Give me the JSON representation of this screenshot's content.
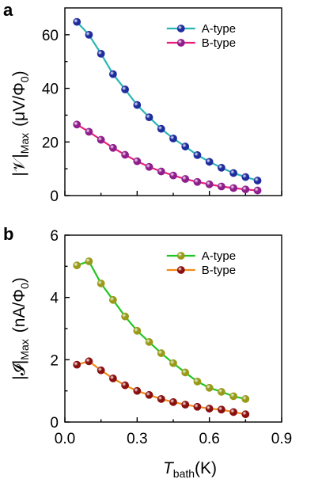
{
  "chart_data": [
    {
      "type": "line",
      "panel_label": "a",
      "ylabel_main": "|𝒱|",
      "ylabel_sub": "Max",
      "ylabel_unit": "(μV/Φ",
      "ylabel_unit_sub": "0",
      "ylabel_unit_end": ")",
      "xlim": [
        0,
        0.9
      ],
      "ylim": [
        0,
        70
      ],
      "yticks": [
        "0",
        "20",
        "40",
        "60"
      ],
      "ytick_values": [
        0,
        20,
        40,
        60
      ],
      "xtick_values": [
        0,
        0.3,
        0.6,
        0.9
      ],
      "legend_position": "top-right",
      "series": [
        {
          "name": "A-type",
          "line_color": "#2ab5b5",
          "marker_color": "#1f2c9e",
          "x": [
            0.05,
            0.1,
            0.15,
            0.2,
            0.25,
            0.3,
            0.35,
            0.4,
            0.45,
            0.5,
            0.55,
            0.6,
            0.65,
            0.7,
            0.75,
            0.8
          ],
          "y": [
            64.8,
            60.0,
            52.9,
            45.3,
            39.6,
            33.8,
            29.2,
            24.9,
            21.3,
            18.3,
            15.1,
            12.6,
            10.4,
            8.4,
            6.9,
            5.6
          ]
        },
        {
          "name": "B-type",
          "line_color": "#e8207e",
          "marker_color": "#8e1e8c",
          "x": [
            0.05,
            0.1,
            0.15,
            0.2,
            0.25,
            0.3,
            0.35,
            0.4,
            0.45,
            0.5,
            0.55,
            0.6,
            0.65,
            0.7,
            0.75,
            0.8
          ],
          "y": [
            26.5,
            23.8,
            20.8,
            17.8,
            15.2,
            12.8,
            10.7,
            9.0,
            7.5,
            6.2,
            5.1,
            4.2,
            3.4,
            2.8,
            2.3,
            1.9
          ]
        }
      ]
    },
    {
      "type": "line",
      "panel_label": "b",
      "ylabel_main": "|𝓘|",
      "ylabel_sub": "Max",
      "ylabel_unit": "(nA/Φ",
      "ylabel_unit_sub": "0",
      "ylabel_unit_end": ")",
      "xlabel_main": "T",
      "xlabel_sub": "bath",
      "xlabel_unit": "(K)",
      "xlim": [
        0,
        0.9
      ],
      "ylim": [
        0,
        6
      ],
      "yticks": [
        "0",
        "2",
        "4",
        "6"
      ],
      "ytick_values": [
        0,
        2,
        4,
        6
      ],
      "xticks": [
        "0.0",
        "0.3",
        "0.6",
        "0.9"
      ],
      "xtick_values": [
        0,
        0.3,
        0.6,
        0.9
      ],
      "legend_position": "top-right",
      "series": [
        {
          "name": "A-type",
          "line_color": "#22c522",
          "marker_color": "#9a9a1a",
          "x": [
            0.05,
            0.1,
            0.15,
            0.2,
            0.25,
            0.3,
            0.35,
            0.4,
            0.45,
            0.5,
            0.55,
            0.6,
            0.65,
            0.7,
            0.75
          ],
          "y": [
            5.03,
            5.16,
            4.45,
            3.92,
            3.39,
            2.93,
            2.57,
            2.21,
            1.89,
            1.59,
            1.3,
            1.1,
            0.97,
            0.83,
            0.74
          ]
        },
        {
          "name": "B-type",
          "line_color": "#f28a1a",
          "marker_color": "#8a1010",
          "x": [
            0.05,
            0.1,
            0.15,
            0.2,
            0.25,
            0.3,
            0.35,
            0.4,
            0.45,
            0.5,
            0.55,
            0.6,
            0.65,
            0.7,
            0.75
          ],
          "y": [
            1.84,
            1.95,
            1.66,
            1.4,
            1.18,
            1.0,
            0.87,
            0.74,
            0.64,
            0.56,
            0.49,
            0.43,
            0.4,
            0.32,
            0.25
          ]
        }
      ]
    }
  ]
}
